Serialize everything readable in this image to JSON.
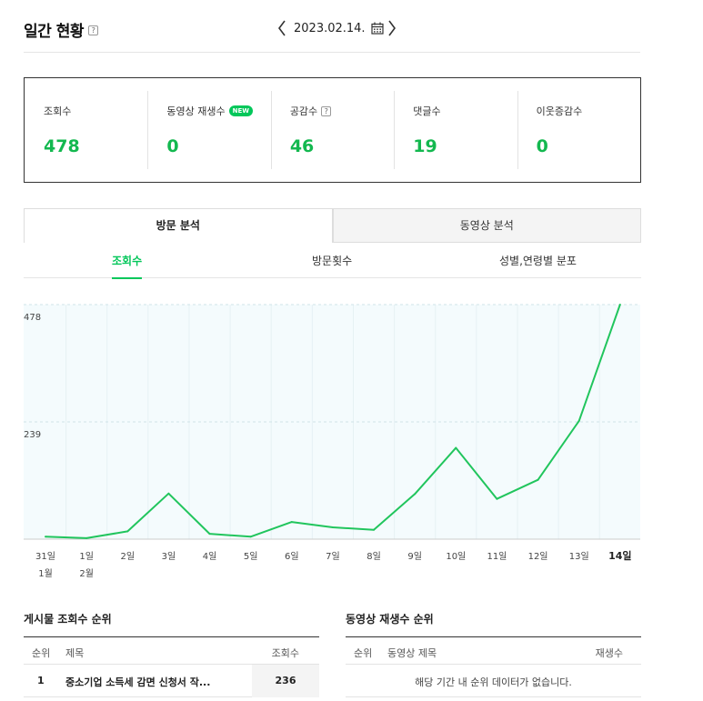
{
  "header": {
    "title": "일간 현황",
    "help": "?",
    "date": "2023.02.14."
  },
  "stats": [
    {
      "label": "조회수",
      "value": "478"
    },
    {
      "label": "동영상 재생수",
      "badge": "NEW",
      "value": "0"
    },
    {
      "label": "공감수",
      "help": "?",
      "value": "46"
    },
    {
      "label": "댓글수",
      "value": "19"
    },
    {
      "label": "이웃증감수",
      "value": "0"
    }
  ],
  "main_tabs": [
    "방문 분석",
    "동영상 분석"
  ],
  "sub_tabs": [
    "조회수",
    "방문횟수",
    "성별,연령별 분포"
  ],
  "chart_data": {
    "type": "line",
    "x": [
      "31일",
      "1일",
      "2일",
      "3일",
      "4일",
      "5일",
      "6일",
      "7일",
      "8일",
      "9일",
      "10일",
      "11일",
      "12일",
      "13일",
      "14일"
    ],
    "month_labels": {
      "0": "1월",
      "1": "2월"
    },
    "values": [
      5,
      2,
      16,
      93,
      11,
      5,
      35,
      24,
      19,
      92,
      186,
      82,
      121,
      241,
      478
    ],
    "yticks": [
      "478",
      "239"
    ],
    "ylim": [
      0,
      478
    ],
    "grid": true,
    "line_color": "#21c55d",
    "area_color": "#f4fbfd"
  },
  "post_rank": {
    "title": "게시물 조회수 순위",
    "columns": [
      "순위",
      "제목",
      "조회수"
    ],
    "rows": [
      {
        "rank": "1",
        "title": "중소기업 소득세 감면 신청서 작...",
        "views": "236"
      }
    ]
  },
  "video_rank": {
    "title": "동영상 재생수 순위",
    "columns": [
      "순위",
      "동영상 제목",
      "재생수"
    ],
    "empty": "해당 기간 내 순위 데이터가 없습니다."
  }
}
